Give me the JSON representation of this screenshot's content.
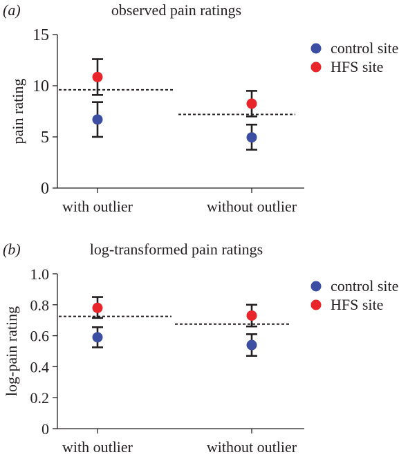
{
  "chart_data": [
    {
      "panel_label": "(a)",
      "type": "scatter",
      "title": "observed pain ratings",
      "xlabel": "",
      "ylabel": "pain rating",
      "categories": [
        "with outlier",
        "without outlier"
      ],
      "ylim": [
        0,
        15
      ],
      "yticks": [
        0,
        5,
        10,
        15
      ],
      "ytick_labels": [
        "0",
        "5",
        "10",
        "15"
      ],
      "grid": false,
      "legend_position": "top-right",
      "series": [
        {
          "name": "control site",
          "color": "#3b4ea1",
          "values": [
            6.7,
            4.95
          ],
          "error_low": [
            5.0,
            3.75
          ],
          "error_high": [
            8.4,
            6.2
          ]
        },
        {
          "name": "HFS site",
          "color": "#e8252b",
          "values": [
            10.85,
            8.25
          ],
          "error_low": [
            9.1,
            7.0
          ],
          "error_high": [
            12.6,
            9.5
          ]
        }
      ],
      "means": [
        9.6,
        7.2
      ]
    },
    {
      "panel_label": "(b)",
      "type": "scatter",
      "title": "log-transformed pain ratings",
      "xlabel": "",
      "ylabel": "log-pain rating",
      "categories": [
        "with outlier",
        "without outlier"
      ],
      "ylim": [
        0,
        1.0
      ],
      "yticks": [
        0,
        0.2,
        0.4,
        0.6,
        0.8,
        1.0
      ],
      "ytick_labels": [
        "0",
        "0.2",
        "0.4",
        "0.6",
        "0.8",
        "1.0"
      ],
      "grid": false,
      "legend_position": "top-right",
      "series": [
        {
          "name": "control site",
          "color": "#3b4ea1",
          "values": [
            0.59,
            0.54
          ],
          "error_low": [
            0.525,
            0.47
          ],
          "error_high": [
            0.655,
            0.61
          ]
        },
        {
          "name": "HFS site",
          "color": "#e8252b",
          "values": [
            0.78,
            0.73
          ],
          "error_low": [
            0.715,
            0.66
          ],
          "error_high": [
            0.85,
            0.8
          ]
        }
      ],
      "means": [
        0.725,
        0.675
      ]
    }
  ]
}
